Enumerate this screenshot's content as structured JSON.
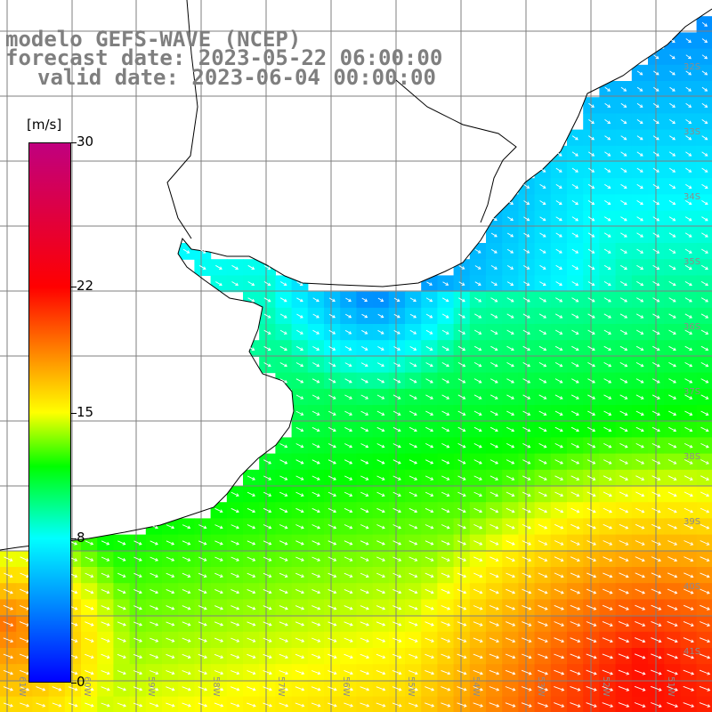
{
  "title": {
    "line1": "modelo GEFS-WAVE (NCEP)",
    "line2": "forecast date: 2023-05-22 06:00:00",
    "line3": "valid date: 2023-06-04 00:00:00"
  },
  "colorbar": {
    "unit": "[m/s]",
    "min": 0,
    "max": 30,
    "ticks": [
      {
        "label": "30",
        "value": 30
      },
      {
        "label": "22",
        "value": 22
      },
      {
        "label": "15",
        "value": 15
      },
      {
        "label": "8",
        "value": 8
      },
      {
        "label": "0",
        "value": 0
      }
    ],
    "stops": [
      {
        "value": 0,
        "color": "#0000ff"
      },
      {
        "value": 8,
        "color": "#00ffff"
      },
      {
        "value": 12,
        "color": "#00ff00"
      },
      {
        "value": 15,
        "color": "#ffff00"
      },
      {
        "value": 22,
        "color": "#ff0000"
      },
      {
        "value": 30,
        "color": "#c0007f"
      }
    ]
  },
  "map": {
    "lat_labels": [
      "32S",
      "33S",
      "34S",
      "35S",
      "36S",
      "37S",
      "38S",
      "39S",
      "40S",
      "41S"
    ],
    "lon_labels": [
      "61W",
      "60W",
      "59W",
      "58W",
      "57W",
      "56W",
      "55W",
      "54W",
      "53W",
      "52W",
      "51W"
    ],
    "land_color": "#ffffff",
    "grid_color": "#7f7f7f",
    "coast_color": "#000000",
    "arrow_color": "#ffffff",
    "wind_direction_note": ""
  }
}
